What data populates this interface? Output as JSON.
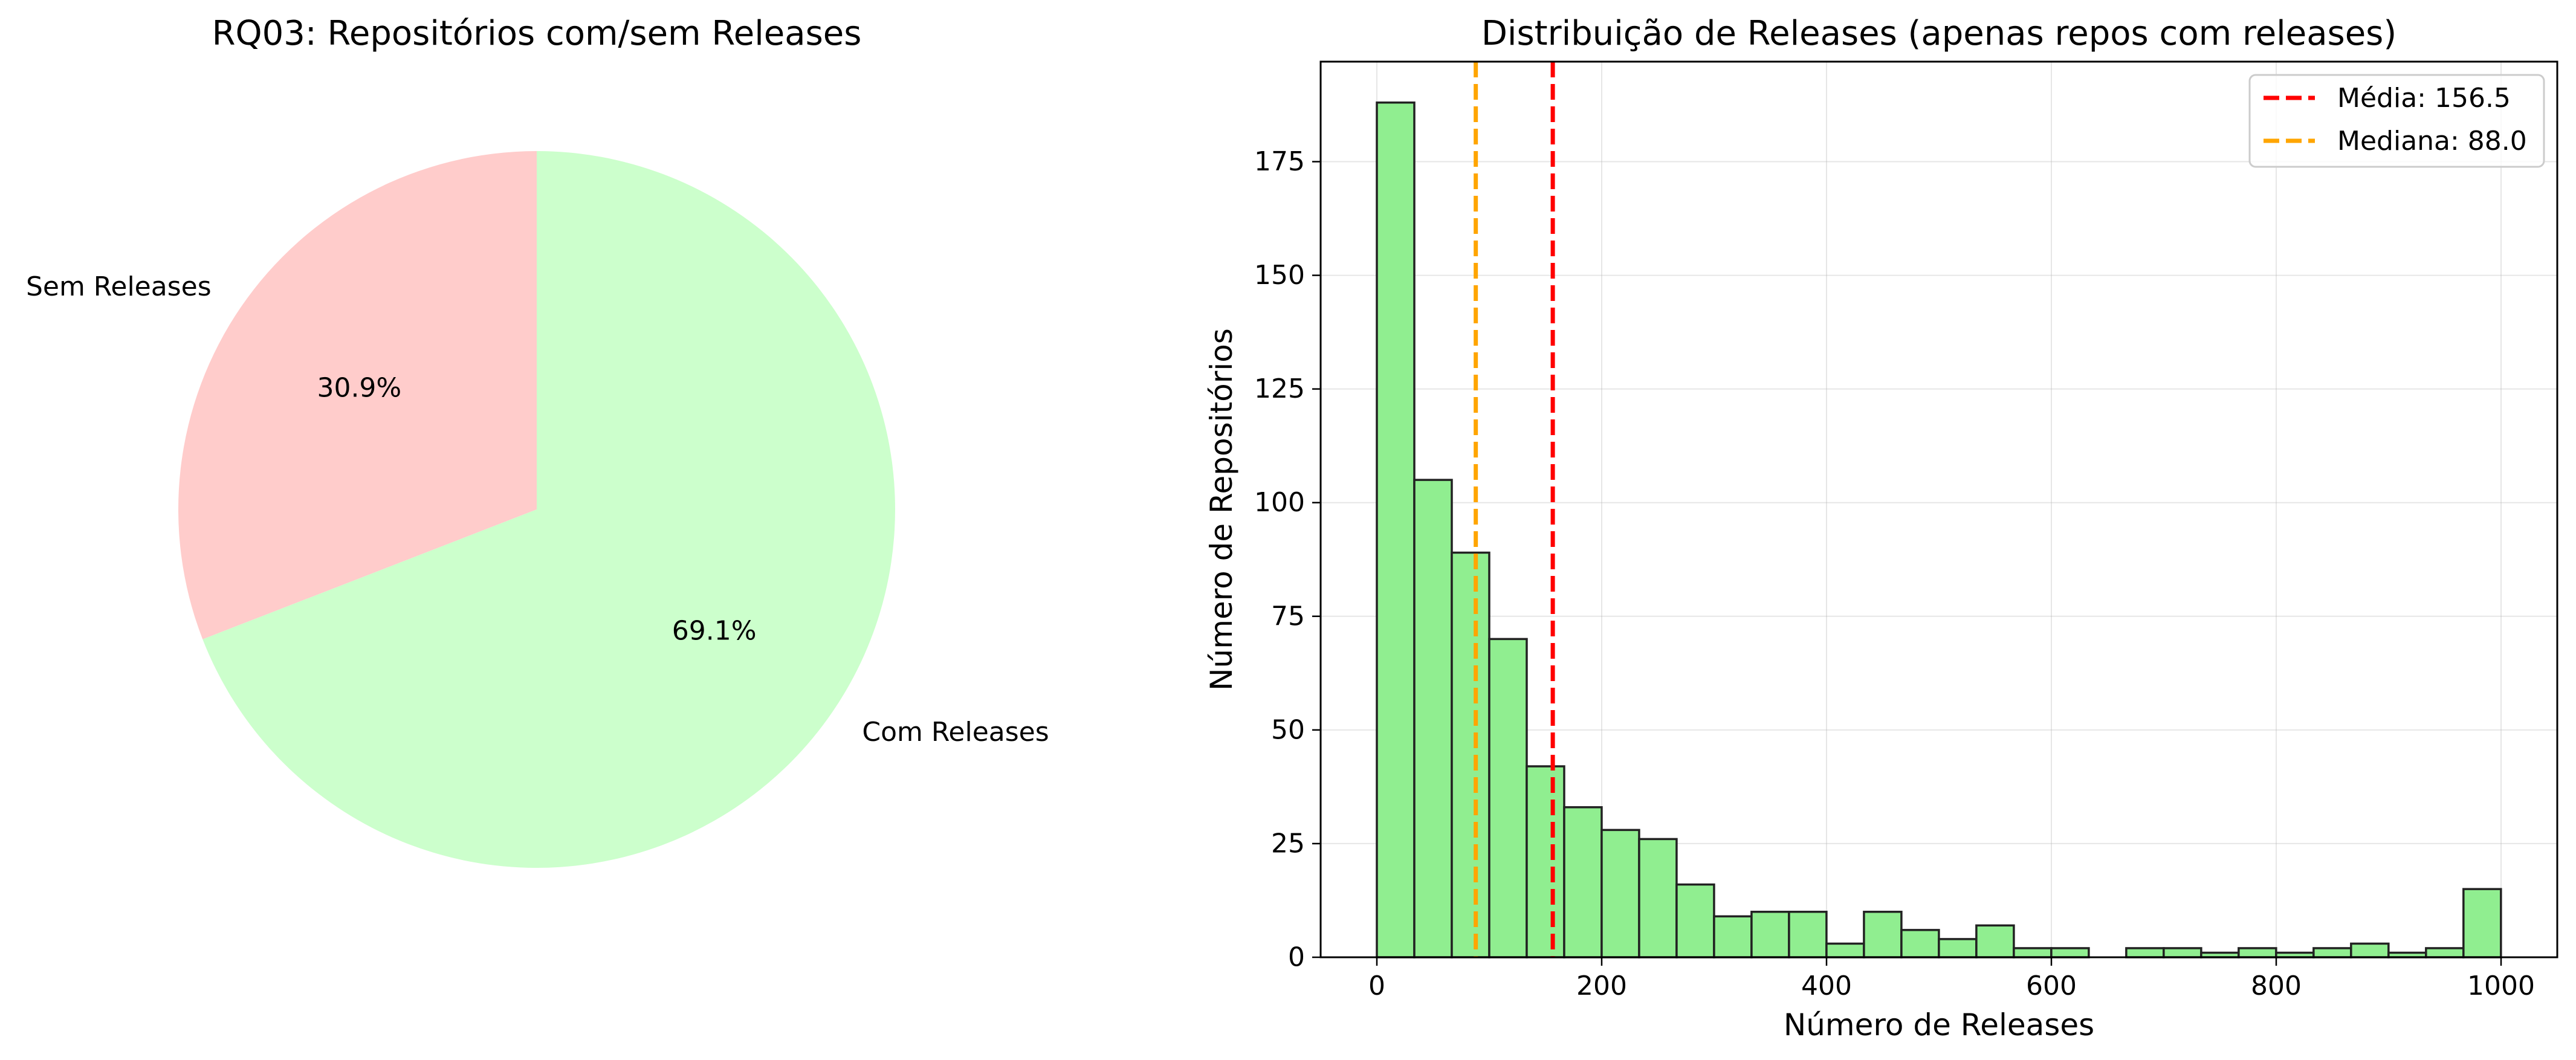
{
  "chart_data": [
    {
      "type": "pie",
      "title": "RQ03: Repositórios com/sem Releases",
      "labels": [
        "Sem Releases",
        "Com Releases"
      ],
      "values": [
        30.9,
        69.1
      ],
      "percent_labels": [
        "30.9%",
        "69.1%"
      ],
      "colors": [
        "#ffcccb",
        "#ccffcc"
      ],
      "start_angle_deg": 90
    },
    {
      "type": "bar",
      "subtype": "histogram",
      "title": "Distribuição de Releases (apenas repos com releases)",
      "xlabel": "Número de Releases",
      "ylabel": "Número de Repositórios",
      "xlim": [
        -50,
        1050
      ],
      "ylim": [
        0,
        197
      ],
      "xticks": [
        0,
        200,
        400,
        600,
        800,
        1000
      ],
      "xtick_labels": [
        "0",
        "200",
        "400",
        "600",
        "800",
        "1000"
      ],
      "yticks": [
        0,
        25,
        50,
        75,
        100,
        125,
        150,
        175
      ],
      "ytick_labels": [
        "0",
        "25",
        "50",
        "75",
        "100",
        "125",
        "150",
        "175"
      ],
      "grid": true,
      "bar_color": "#90ee90",
      "bin_start": 0,
      "bin_width": 33.33,
      "counts": [
        188,
        105,
        89,
        70,
        42,
        33,
        28,
        26,
        16,
        9,
        10,
        10,
        3,
        10,
        6,
        4,
        7,
        2,
        2,
        0,
        2,
        2,
        1,
        2,
        1,
        2,
        3,
        1,
        2,
        15
      ],
      "vlines": [
        {
          "name": "mean",
          "label": "Média: 156.5",
          "x": 156.5,
          "color": "#ff0000"
        },
        {
          "name": "median",
          "label": "Mediana: 88.0",
          "x": 88.0,
          "color": "#ffa500"
        }
      ],
      "legend_position": "upper right"
    }
  ]
}
